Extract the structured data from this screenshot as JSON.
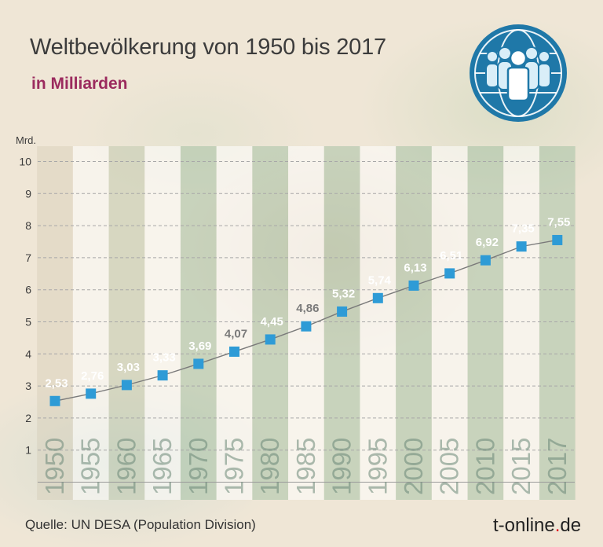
{
  "header": {
    "title": "Weltbevölkerung von 1950 bis 2017",
    "subtitle": "in Milliarden"
  },
  "logo": {
    "icon": "population-globe-icon",
    "color": "#1f78a8"
  },
  "footer": {
    "source": "Quelle: UN DESA (Population Division)",
    "brand_main": "t-online",
    "brand_dot": ".",
    "brand_tld": "de"
  },
  "chart_data": {
    "type": "line",
    "title": "Weltbevölkerung von 1950 bis 2017",
    "subtitle": "in Milliarden",
    "ylabel": "Mrd.",
    "xlabel": "",
    "categories": [
      "1950",
      "1955",
      "1960",
      "1965",
      "1970",
      "1975",
      "1980",
      "1985",
      "1990",
      "1995",
      "2000",
      "2005",
      "2010",
      "2015",
      "2017"
    ],
    "series": [
      {
        "values": [
          2.53,
          2.76,
          3.03,
          3.33,
          3.69,
          4.07,
          4.45,
          4.86,
          5.32,
          5.74,
          6.13,
          6.51,
          6.92,
          7.35,
          7.55
        ],
        "labels": [
          "2,53",
          "2,76",
          "3,03",
          "3,33",
          "3,69",
          "4,07",
          "4,45",
          "4,86",
          "5,32",
          "5,74",
          "6,13",
          "6,51",
          "6,92",
          "7,35",
          "7,55"
        ]
      }
    ],
    "ylim": [
      0,
      10
    ],
    "yticks": [
      "1",
      "2",
      "3",
      "4",
      "5",
      "6",
      "7",
      "8",
      "9",
      "10"
    ],
    "grid": true,
    "legend": "none",
    "colors": {
      "marker": "#2e9bd6",
      "line": "#7a7a7a",
      "label_dark": "#7a7a7a",
      "label_light": "#ffffff"
    }
  }
}
